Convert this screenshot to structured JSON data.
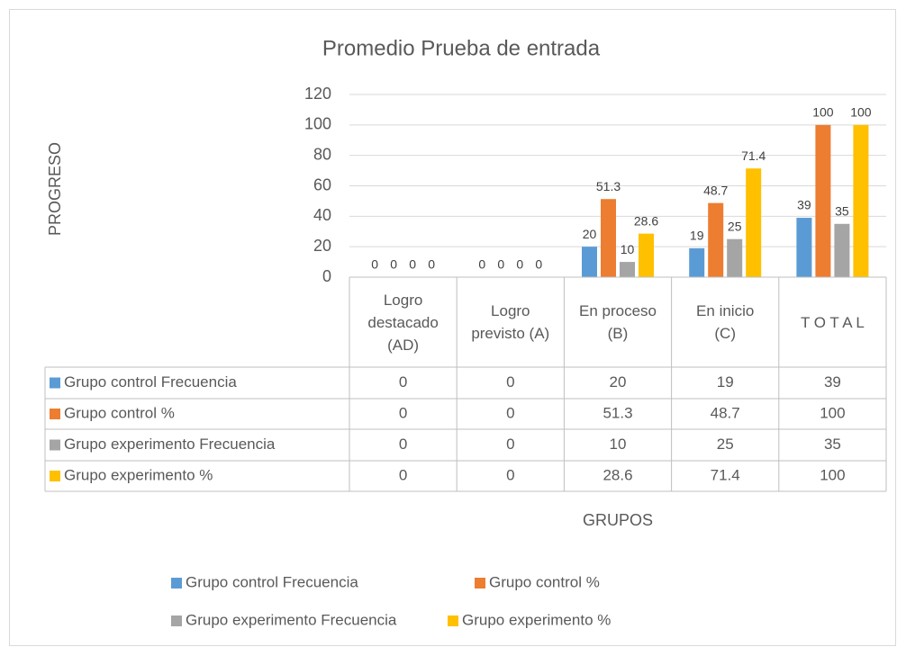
{
  "chart_data": {
    "type": "bar",
    "title": "Promedio Prueba de entrada",
    "y_label": "PROGRESO",
    "x_label": "GRUPOS",
    "categories": [
      "Logro destacado (AD)",
      "Logro previsto (A)",
      "En proceso (B)",
      "En inicio (C)",
      "T O T A L"
    ],
    "series": [
      {
        "name": "Grupo control Frecuencia",
        "color": "#5b9bd5",
        "values": [
          0,
          0,
          20,
          19,
          39
        ]
      },
      {
        "name": "Grupo control %",
        "color": "#ed7d31",
        "values": [
          0,
          0,
          51.3,
          48.7,
          100
        ]
      },
      {
        "name": "Grupo experimento Frecuencia",
        "color": "#a5a5a5",
        "values": [
          0,
          0,
          10,
          25,
          35
        ]
      },
      {
        "name": "Grupo experimento %",
        "color": "#ffc000",
        "values": [
          0,
          0,
          28.6,
          71.4,
          100
        ]
      }
    ],
    "ylim": [
      0,
      120
    ],
    "yticks": [
      0,
      20,
      40,
      60,
      80,
      100,
      120
    ],
    "grid": true,
    "data_table": true,
    "legend": "bottom"
  }
}
